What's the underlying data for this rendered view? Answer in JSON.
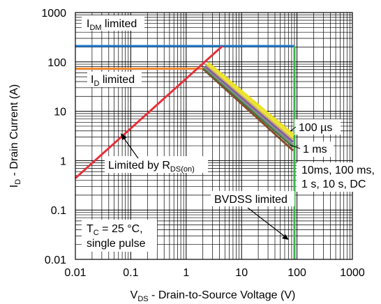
{
  "chart_data": {
    "type": "line",
    "title": "",
    "xlabel": {
      "main": "V",
      "sub": "DS",
      "rest": " - Drain-to-Source Voltage (V)"
    },
    "ylabel": {
      "main": "I",
      "sub": "D",
      "rest": " - Drain Current (A)"
    },
    "xscale": "log",
    "yscale": "log",
    "xlim": [
      0.01,
      1000
    ],
    "ylim": [
      0.01,
      1000
    ],
    "grid": true,
    "xticks": [
      {
        "value": 0.01,
        "label": "0.01"
      },
      {
        "value": 0.1,
        "label": "0.1"
      },
      {
        "value": 1,
        "label": "1"
      },
      {
        "value": 10,
        "label": "10"
      },
      {
        "value": 100,
        "label": "100"
      },
      {
        "value": 1000,
        "label": "1000"
      }
    ],
    "yticks": [
      {
        "value": 0.01,
        "label": "0.01"
      },
      {
        "value": 0.1,
        "label": "0.1"
      },
      {
        "value": 1,
        "label": "1"
      },
      {
        "value": 10,
        "label": "10"
      },
      {
        "value": 100,
        "label": "100"
      },
      {
        "value": 1000,
        "label": "1000"
      }
    ],
    "series": [
      {
        "key": "idm",
        "color": "#1f77c8",
        "points": [
          [
            0.01,
            210
          ],
          [
            90,
            210
          ]
        ]
      },
      {
        "key": "id",
        "color": "#f28b30",
        "points": [
          [
            0.01,
            73
          ],
          [
            2,
            73
          ]
        ]
      },
      {
        "key": "rds",
        "color": "#e8303a",
        "points": [
          [
            0.01,
            0.44
          ],
          [
            4.5,
            210
          ]
        ]
      },
      {
        "key": "bvdss",
        "color": "#3ab54a",
        "points": [
          [
            90,
            0.01
          ],
          [
            90,
            210
          ]
        ]
      },
      {
        "key": "dc",
        "color": "#8b4a2b",
        "points": [
          [
            2,
            73
          ],
          [
            85,
            1.6
          ]
        ]
      },
      {
        "key": "t10s",
        "color": "#3a7a3a",
        "points": [
          [
            2.05,
            76
          ],
          [
            85,
            1.9
          ]
        ]
      },
      {
        "key": "t1s",
        "color": "#8a8a8a",
        "points": [
          [
            2.1,
            79
          ],
          [
            85,
            2.1
          ]
        ]
      },
      {
        "key": "t100ms",
        "color": "#7e5aa8",
        "points": [
          [
            2.2,
            84
          ],
          [
            85,
            2.4
          ]
        ]
      },
      {
        "key": "t10ms",
        "color": "#d4b65a",
        "points": [
          [
            2.3,
            88
          ],
          [
            85,
            2.7
          ]
        ]
      },
      {
        "key": "t1ms",
        "color": "#e8e840",
        "points": [
          [
            2.4,
            92
          ],
          [
            85,
            3.0
          ]
        ]
      },
      {
        "key": "t100us",
        "color": "#f0e020",
        "points": [
          [
            2.5,
            96
          ],
          [
            88,
            3.3
          ]
        ]
      }
    ],
    "annotations": {
      "idm_limited": {
        "main": "I",
        "sub": "DM",
        "rest": " limited"
      },
      "id_limited": {
        "main": "I",
        "sub": "D",
        "rest": " limited"
      },
      "rds_limited": {
        "main": "Limited by R",
        "sub": "DS(on)",
        "rest": ""
      },
      "t100us": "100 µs",
      "t1ms": "1 ms",
      "dc_line1": "10ms, 100 ms,",
      "dc_line2": "1 s, 10 s, DC",
      "bvdss": "BVDSS limited",
      "tc_main": "T",
      "tc_sub": "C",
      "tc_rest": " = 25 °C,",
      "single_pulse": "single pulse"
    }
  }
}
